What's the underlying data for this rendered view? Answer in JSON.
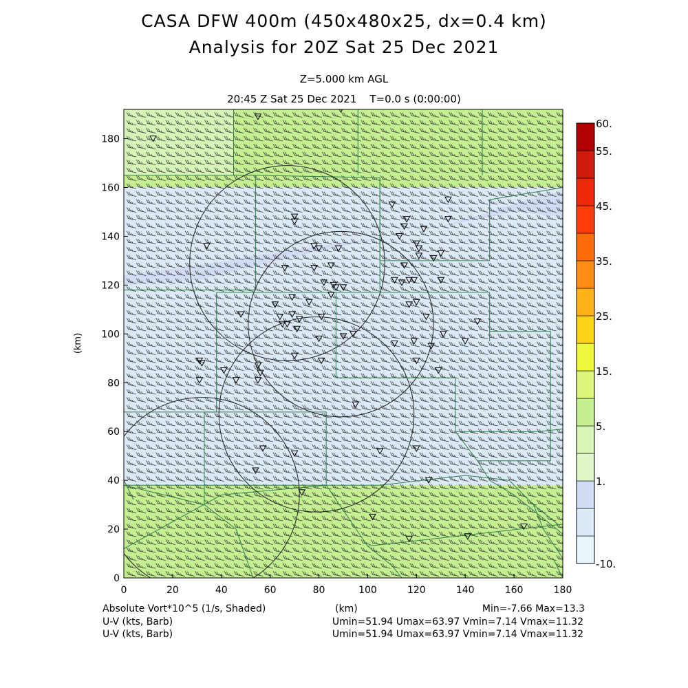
{
  "title": "CASA DFW 400m (450x480x25, dx=0.4 km)",
  "subtitle": "Analysis for 20Z Sat 25 Dec 2021",
  "level_text": "Z=5.000 km AGL",
  "time_text": "20:45 Z Sat 25 Dec 2021    T=0.0 s (0:00:00)",
  "footer": {
    "field_label": "Absolute Vort*10^5 (1/s, Shaded)",
    "km_label": "(km)",
    "minmax": "Min=-7.66 Max=13.3",
    "uv_label_1": "U-V (kts, Barb)",
    "uv_label_2": "U-V (kts, Barb)",
    "uv_stats_1": "Umin=51.94 Umax=63.97 Vmin=7.14 Vmax=11.32",
    "uv_stats_2": "Umin=51.94 Umax=63.97 Vmin=7.14 Vmax=11.32"
  },
  "colors": {
    "green_light": "#d6f5b6",
    "green_mid": "#c4f092",
    "lavender": "#d2dcf5",
    "blue_pale": "#dceaf7",
    "border_line": "#2f7f4a",
    "barb": "#333333"
  },
  "chart_data": {
    "type": "heatmap",
    "xlabel": "(km)",
    "ylabel": "(km)",
    "xlim": [
      0,
      180
    ],
    "ylim": [
      0,
      192
    ],
    "xticks": [
      0,
      20,
      40,
      60,
      80,
      100,
      120,
      140,
      160,
      180
    ],
    "yticks": [
      0,
      20,
      40,
      60,
      80,
      100,
      120,
      140,
      160,
      180
    ],
    "regions": [
      {
        "name": "south",
        "y_from": 0,
        "y_to": 38,
        "value": 10
      },
      {
        "name": "central",
        "y_from": 38,
        "y_to": 160,
        "value": 0
      },
      {
        "name": "north",
        "y_from": 160,
        "y_to": 192,
        "value": 10
      }
    ],
    "colorbar": {
      "tick_labels": [
        "60.",
        "55.",
        "45.",
        "35.",
        "25.",
        "15.",
        "5.",
        "1.",
        "-10."
      ],
      "colors": [
        "#e8f6fb",
        "#dceaf7",
        "#d2dcf5",
        "#e2f7c8",
        "#d6f5b6",
        "#c4f092",
        "#ddf57a",
        "#eef73a",
        "#ffd21a",
        "#ffb21a",
        "#ff8c14",
        "#ff6a0a",
        "#ff3c0a",
        "#f0280a",
        "#d01a0a",
        "#b00000"
      ]
    },
    "radar_sites": [
      {
        "x": 32,
        "y": 34,
        "r": 40
      },
      {
        "x": 79,
        "y": 67,
        "r": 40
      },
      {
        "x": 89,
        "y": 104,
        "r": 38
      },
      {
        "x": 67,
        "y": 129,
        "r": 40
      }
    ],
    "stations": [
      {
        "x": 55,
        "y": 189
      },
      {
        "x": 89,
        "y": 192
      },
      {
        "x": 12,
        "y": 180
      },
      {
        "x": 70,
        "y": 146
      },
      {
        "x": 70,
        "y": 148
      },
      {
        "x": 110,
        "y": 153
      },
      {
        "x": 133,
        "y": 155
      },
      {
        "x": 116,
        "y": 147
      },
      {
        "x": 115,
        "y": 144
      },
      {
        "x": 133,
        "y": 147
      },
      {
        "x": 123,
        "y": 143
      },
      {
        "x": 113,
        "y": 140
      },
      {
        "x": 34,
        "y": 136
      },
      {
        "x": 78,
        "y": 136
      },
      {
        "x": 80,
        "y": 135
      },
      {
        "x": 88,
        "y": 135
      },
      {
        "x": 120,
        "y": 137
      },
      {
        "x": 121,
        "y": 135
      },
      {
        "x": 130,
        "y": 133
      },
      {
        "x": 127,
        "y": 131
      },
      {
        "x": 121,
        "y": 132
      },
      {
        "x": 66,
        "y": 127
      },
      {
        "x": 78,
        "y": 127
      },
      {
        "x": 85,
        "y": 128
      },
      {
        "x": 115,
        "y": 128
      },
      {
        "x": 111,
        "y": 122
      },
      {
        "x": 117,
        "y": 122
      },
      {
        "x": 119,
        "y": 122
      },
      {
        "x": 130,
        "y": 122
      },
      {
        "x": 82,
        "y": 121
      },
      {
        "x": 86,
        "y": 120
      },
      {
        "x": 87,
        "y": 119
      },
      {
        "x": 90,
        "y": 119
      },
      {
        "x": 114,
        "y": 121
      },
      {
        "x": 85,
        "y": 116
      },
      {
        "x": 69,
        "y": 115
      },
      {
        "x": 76,
        "y": 113
      },
      {
        "x": 62,
        "y": 112
      },
      {
        "x": 117,
        "y": 112
      },
      {
        "x": 120,
        "y": 113
      },
      {
        "x": 48,
        "y": 108
      },
      {
        "x": 69,
        "y": 108
      },
      {
        "x": 72,
        "y": 106
      },
      {
        "x": 81,
        "y": 107
      },
      {
        "x": 64,
        "y": 107
      },
      {
        "x": 124,
        "y": 107
      },
      {
        "x": 145,
        "y": 105
      },
      {
        "x": 65,
        "y": 104
      },
      {
        "x": 67,
        "y": 104
      },
      {
        "x": 71,
        "y": 102
      },
      {
        "x": 80,
        "y": 98
      },
      {
        "x": 90,
        "y": 99
      },
      {
        "x": 94,
        "y": 100
      },
      {
        "x": 111,
        "y": 96
      },
      {
        "x": 119,
        "y": 97
      },
      {
        "x": 126,
        "y": 95
      },
      {
        "x": 131,
        "y": 100
      },
      {
        "x": 140,
        "y": 97
      },
      {
        "x": 70,
        "y": 91
      },
      {
        "x": 81,
        "y": 89
      },
      {
        "x": 120,
        "y": 89
      },
      {
        "x": 31,
        "y": 89
      },
      {
        "x": 32,
        "y": 88
      },
      {
        "x": 55,
        "y": 87
      },
      {
        "x": 41,
        "y": 85
      },
      {
        "x": 56,
        "y": 84
      },
      {
        "x": 129,
        "y": 85
      },
      {
        "x": 31,
        "y": 81
      },
      {
        "x": 46,
        "y": 81
      },
      {
        "x": 55,
        "y": 81
      },
      {
        "x": 95,
        "y": 71
      },
      {
        "x": 57,
        "y": 53
      },
      {
        "x": 70,
        "y": 51
      },
      {
        "x": 105,
        "y": 52
      },
      {
        "x": 120,
        "y": 53
      },
      {
        "x": 54,
        "y": 44
      },
      {
        "x": 125,
        "y": 40
      },
      {
        "x": 73,
        "y": 35
      },
      {
        "x": 102,
        "y": 25
      },
      {
        "x": 164,
        "y": 21
      },
      {
        "x": 141,
        "y": 17
      },
      {
        "x": 117,
        "y": 16
      }
    ]
  }
}
